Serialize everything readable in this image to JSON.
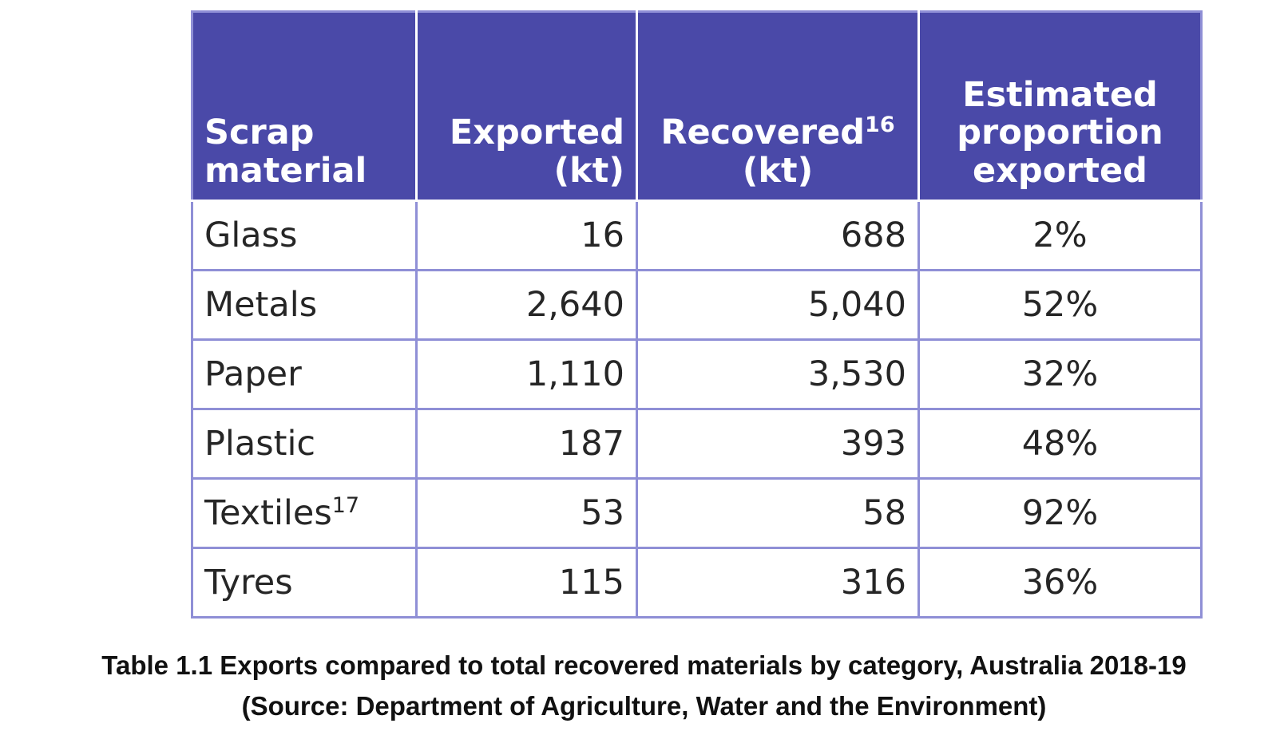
{
  "table": {
    "headers": {
      "material": {
        "line1": "Scrap",
        "line2": "material"
      },
      "exported": {
        "line1": "Exported",
        "line2": "(kt)"
      },
      "recovered": {
        "line1": "Recovered",
        "note": "16",
        "line2": "(kt)"
      },
      "proportion": {
        "line1": "Estimated",
        "line2": "proportion",
        "line3": "exported"
      }
    },
    "rows": [
      {
        "material": "Glass",
        "note": "",
        "exported": "16",
        "recovered": "688",
        "proportion": "2%"
      },
      {
        "material": "Metals",
        "note": "",
        "exported": "2,640",
        "recovered": "5,040",
        "proportion": "52%"
      },
      {
        "material": "Paper",
        "note": "",
        "exported": "1,110",
        "recovered": "3,530",
        "proportion": "32%"
      },
      {
        "material": "Plastic",
        "note": "",
        "exported": "187",
        "recovered": "393",
        "proportion": "48%"
      },
      {
        "material": "Textiles",
        "note": "17",
        "exported": "53",
        "recovered": "58",
        "proportion": "92%"
      },
      {
        "material": "Tyres",
        "note": "",
        "exported": "115",
        "recovered": "316",
        "proportion": "36%"
      }
    ]
  },
  "caption": {
    "line1": "Table 1.1 Exports compared to total recovered materials by category, Australia 2018-19",
    "line2": "(Source: Department of Agriculture, Water and the Environment)"
  },
  "colors": {
    "header_background": "#4a49a8",
    "header_text": "#ffffff",
    "border": "#8f8fd6",
    "body_text": "#262626"
  }
}
